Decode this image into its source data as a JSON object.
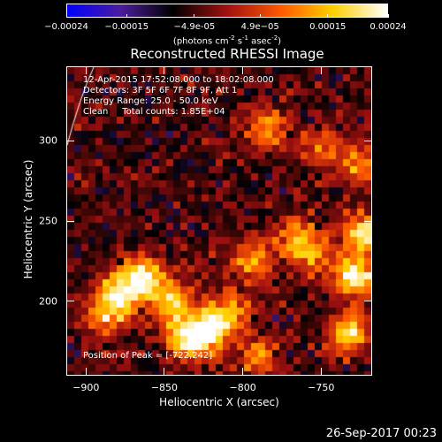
{
  "colorbar": {
    "tick_labels": [
      "-0.00024",
      "-0.00015",
      "-4.9e-05",
      "4.9e-05",
      "0.00015",
      "0.00024"
    ],
    "unit_main": "(photons cm",
    "unit_sup1": "-2",
    "unit_mid": " s",
    "unit_sup2": "-1",
    "unit_mid2": " asec",
    "unit_sup3": "-2",
    "unit_end": ")",
    "colors": [
      "#0000ff",
      "#4b1d9a",
      "#000000",
      "#a01010",
      "#ff5a00",
      "#ffd000",
      "#ffffff"
    ]
  },
  "header": {
    "title": "Reconstructed RHESSI Image"
  },
  "info": {
    "line1": "12-Apr-2015 17:52:08.000 to 18:02:08.000",
    "line2": "Detectors: 3F 5F 6F 7F 8F 9F, Att 1",
    "line3": "Energy Range: 25.0 - 50.0 keV",
    "line4": "Clean     Total counts: 1.85E+04",
    "peak": "Position of Peak = [-722,242]"
  },
  "chart_data": {
    "type": "heatmap",
    "title": "Reconstructed RHESSI Image",
    "xlabel": "Heliocentric X (arcsec)",
    "ylabel": "Heliocentric Y (arcsec)",
    "xlim": [
      -912,
      -718
    ],
    "ylim": [
      154,
      346
    ],
    "xticks": [
      -900,
      -850,
      -800,
      -750
    ],
    "yticks": [
      200,
      250,
      300
    ],
    "xtick_labels": [
      "-900",
      "-850",
      "-800",
      "-750"
    ],
    "ytick_labels": [
      "200",
      "250",
      "300"
    ],
    "colorbar_range": [
      -0.00024,
      0.00024
    ],
    "peak_position": [
      -722,
      242
    ],
    "bright_regions": [
      {
        "x": -878,
        "y": 205,
        "intensity": 0.9
      },
      {
        "x": -862,
        "y": 215,
        "intensity": 0.85
      },
      {
        "x": -845,
        "y": 198,
        "intensity": 0.75
      },
      {
        "x": -822,
        "y": 182,
        "intensity": 0.9
      },
      {
        "x": -835,
        "y": 176,
        "intensity": 0.8
      },
      {
        "x": -808,
        "y": 192,
        "intensity": 0.6
      },
      {
        "x": -888,
        "y": 190,
        "intensity": 0.6
      },
      {
        "x": -728,
        "y": 215,
        "intensity": 0.95
      },
      {
        "x": -722,
        "y": 242,
        "intensity": 0.85
      },
      {
        "x": -732,
        "y": 180,
        "intensity": 0.8
      },
      {
        "x": -725,
        "y": 285,
        "intensity": 0.5
      },
      {
        "x": -785,
        "y": 308,
        "intensity": 0.6
      },
      {
        "x": -795,
        "y": 225,
        "intensity": 0.55
      },
      {
        "x": -768,
        "y": 240,
        "intensity": 0.5
      },
      {
        "x": -755,
        "y": 230,
        "intensity": 0.55
      },
      {
        "x": -790,
        "y": 165,
        "intensity": 0.5
      },
      {
        "x": -750,
        "y": 295,
        "intensity": 0.45
      }
    ]
  },
  "footer": {
    "datestamp": "26-Sep-2017 00:23"
  }
}
